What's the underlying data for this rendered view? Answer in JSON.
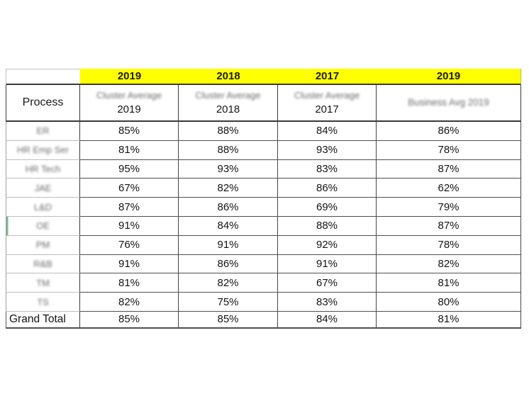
{
  "table": {
    "top_header": {
      "corner": "",
      "years": [
        "2019",
        "2018",
        "2017",
        "2019"
      ]
    },
    "columns": [
      {
        "id": "process",
        "label": "Process"
      },
      {
        "id": "cluster-avg-2019",
        "line1": "Cluster Average",
        "line2": "2019",
        "line1_blurred": true
      },
      {
        "id": "cluster-avg-2018",
        "line1": "Cluster Average",
        "line2": "2018",
        "line1_blurred": true
      },
      {
        "id": "cluster-avg-2017",
        "line1": "Cluster Average",
        "line2": "2017",
        "line1_blurred": true
      },
      {
        "id": "business-avg-2019",
        "line1": "Business Avg 2019",
        "line1_blurred": true
      }
    ],
    "rows": [
      {
        "label": "ER",
        "blurred": true,
        "values": [
          "85%",
          "88%",
          "84%",
          "86%"
        ]
      },
      {
        "label": "HR Emp Ser",
        "blurred": true,
        "values": [
          "81%",
          "88%",
          "93%",
          "78%"
        ]
      },
      {
        "label": "HR Tech",
        "blurred": true,
        "values": [
          "95%",
          "93%",
          "83%",
          "87%"
        ]
      },
      {
        "label": "JAE",
        "blurred": true,
        "values": [
          "67%",
          "82%",
          "86%",
          "62%"
        ]
      },
      {
        "label": "L&D",
        "blurred": true,
        "values": [
          "87%",
          "86%",
          "69%",
          "79%"
        ]
      },
      {
        "label": "OE",
        "blurred": true,
        "selected": true,
        "values": [
          "91%",
          "84%",
          "88%",
          "87%"
        ]
      },
      {
        "label": "PM",
        "blurred": true,
        "values": [
          "76%",
          "91%",
          "92%",
          "78%"
        ]
      },
      {
        "label": "R&B",
        "blurred": true,
        "values": [
          "91%",
          "86%",
          "91%",
          "82%"
        ]
      },
      {
        "label": "TM",
        "blurred": true,
        "values": [
          "81%",
          "82%",
          "67%",
          "81%"
        ]
      },
      {
        "label": "TS",
        "blurred": true,
        "values": [
          "82%",
          "75%",
          "83%",
          "80%"
        ]
      },
      {
        "label": "Grand Total",
        "blurred": false,
        "grand_total": true,
        "values": [
          "85%",
          "85%",
          "84%",
          "81%"
        ]
      }
    ]
  },
  "colors": {
    "header_highlight": "#ffff00",
    "grid_dark": "#3a3a3a",
    "grid_light": "#bdbdbd",
    "text": "#141414",
    "blurred_text": "#6b6b6b",
    "selection_green": "#79b695"
  }
}
